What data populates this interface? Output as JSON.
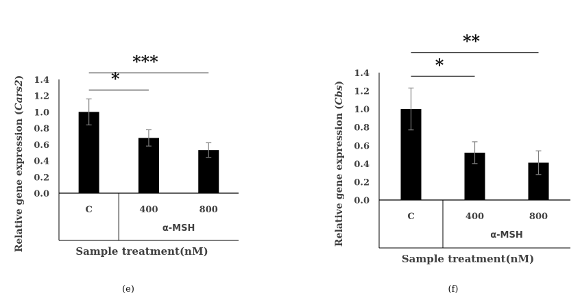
{
  "chart_data": [
    {
      "type": "bar",
      "panel_label": "(e)",
      "categories": [
        "C",
        "400",
        "800"
      ],
      "values": [
        1.0,
        0.68,
        0.53
      ],
      "errors": [
        0.16,
        0.1,
        0.09
      ],
      "ylim": [
        0,
        1.4
      ],
      "yticks": [
        "0.0",
        "0.2",
        "0.4",
        "0.6",
        "0.8",
        "1.0",
        "1.2",
        "1.4"
      ],
      "ylabel_prefix": "Relative gene expression (",
      "ylabel_gene": "Cars2",
      "ylabel_suffix": ")",
      "group_label": "α-MSH",
      "xlabel": "Sample treatment(nM)",
      "significance": [
        {
          "from": 0,
          "to": 1,
          "y": 1.27,
          "label": "*"
        },
        {
          "from": 0,
          "to": 2,
          "y": 1.48,
          "label": "***"
        }
      ],
      "bar_color": "#000000"
    },
    {
      "type": "bar",
      "panel_label": "(f)",
      "categories": [
        "C",
        "400",
        "800"
      ],
      "values": [
        1.0,
        0.52,
        0.41
      ],
      "errors": [
        0.23,
        0.12,
        0.13
      ],
      "ylim": [
        0,
        1.4
      ],
      "yticks": [
        "0.0",
        "0.2",
        "0.4",
        "0.6",
        "0.8",
        "1.0",
        "1.2",
        "1.4"
      ],
      "ylabel_prefix": "Relative gene expression (",
      "ylabel_gene": "Cbs",
      "ylabel_suffix": ")",
      "group_label": "α-MSH",
      "xlabel": "Sample treatment(nM)",
      "significance": [
        {
          "from": 0,
          "to": 1,
          "y": 1.36,
          "label": "*"
        },
        {
          "from": 0,
          "to": 2,
          "y": 1.62,
          "label": "**"
        }
      ],
      "bar_color": "#000000"
    }
  ]
}
